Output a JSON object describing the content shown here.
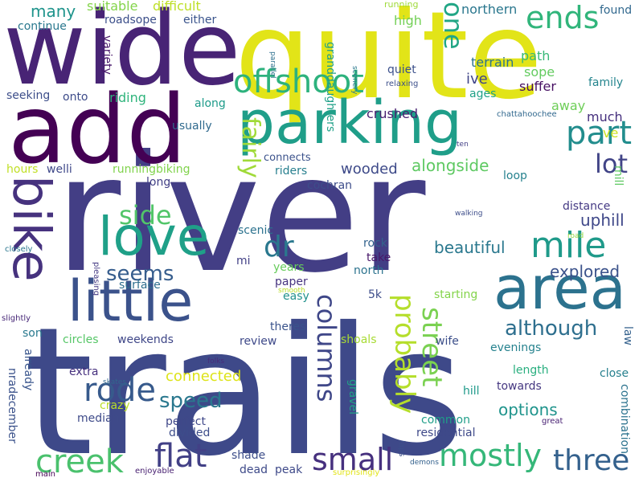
{
  "words": [
    {
      "text": "river",
      "color": "#433e85"
    },
    {
      "text": "trails",
      "color": "#3e4989"
    },
    {
      "text": "quite",
      "color": "#e2e418"
    },
    {
      "text": "wide",
      "color": "#482475"
    },
    {
      "text": "add",
      "color": "#440154"
    },
    {
      "text": "parking",
      "color": "#1f9e89"
    },
    {
      "text": "bike",
      "color": "#46327e"
    },
    {
      "text": "area",
      "color": "#2c728e"
    },
    {
      "text": "little",
      "color": "#3b528b"
    },
    {
      "text": "love",
      "color": "#1fa088"
    },
    {
      "text": "offshoot",
      "color": "#2db27d"
    },
    {
      "text": "mile",
      "color": "#1f9a8a"
    },
    {
      "text": "ends",
      "color": "#31b57b"
    },
    {
      "text": "part",
      "color": "#228d8d"
    },
    {
      "text": "one",
      "color": "#21a685"
    },
    {
      "text": "creek",
      "color": "#4ac16d"
    },
    {
      "text": "flat",
      "color": "#424086"
    },
    {
      "text": "small",
      "color": "#46307e"
    },
    {
      "text": "mostly",
      "color": "#35b779"
    },
    {
      "text": "three",
      "color": "#34618d"
    },
    {
      "text": "rode",
      "color": "#375a8c"
    },
    {
      "text": "columns",
      "color": "#3f4788"
    },
    {
      "text": "street",
      "color": "#7ad151"
    },
    {
      "text": "probably",
      "color": "#b5de2b"
    },
    {
      "text": "fairly",
      "color": "#a0da39"
    },
    {
      "text": "dr",
      "color": "#2a788e"
    },
    {
      "text": "side",
      "color": "#52c569"
    },
    {
      "text": "lot",
      "color": "#414487"
    },
    {
      "text": "seems",
      "color": "#365d8d"
    },
    {
      "text": "although",
      "color": "#2e6f8e"
    },
    {
      "text": "speed",
      "color": "#2a788e"
    },
    {
      "text": "wooded",
      "color": "#3e4a89"
    },
    {
      "text": "alongside",
      "color": "#5ec962"
    },
    {
      "text": "beautiful",
      "color": "#2a788e"
    },
    {
      "text": "explored",
      "color": "#3b528b"
    },
    {
      "text": "uphill",
      "color": "#3f4889"
    },
    {
      "text": "options",
      "color": "#1f948c"
    },
    {
      "text": "connected",
      "color": "#dde318"
    },
    {
      "text": "many",
      "color": "#1f948c"
    },
    {
      "text": "suitable",
      "color": "#84d44b"
    },
    {
      "text": "difficult",
      "color": "#bddf26"
    },
    {
      "text": "running",
      "color": "#9fda3a"
    },
    {
      "text": "northern",
      "color": "#2a778e"
    },
    {
      "text": "found",
      "color": "#31688e"
    },
    {
      "text": "continue",
      "color": "#2a788e"
    },
    {
      "text": "roadsope",
      "color": "#3c4f8a"
    },
    {
      "text": "either",
      "color": "#3a548c"
    },
    {
      "text": "high",
      "color": "#73d056"
    },
    {
      "text": "terrain",
      "color": "#2c738e"
    },
    {
      "text": "path",
      "color": "#38b977"
    },
    {
      "text": "sope",
      "color": "#63cb5f"
    },
    {
      "text": "ive",
      "color": "#404588"
    },
    {
      "text": "family",
      "color": "#25858e"
    },
    {
      "text": "suffer",
      "color": "#471063"
    },
    {
      "text": "quiet",
      "color": "#3c508b"
    },
    {
      "text": "ages",
      "color": "#1fa287"
    },
    {
      "text": "away",
      "color": "#6ece58"
    },
    {
      "text": "much",
      "color": "#46307e"
    },
    {
      "text": "seeking",
      "color": "#3d4e8a"
    },
    {
      "text": "onto",
      "color": "#3e4c8a"
    },
    {
      "text": "variety",
      "color": "#48186a"
    },
    {
      "text": "riding",
      "color": "#2fb47c"
    },
    {
      "text": "along",
      "color": "#1e9b8a"
    },
    {
      "text": "granddaughters",
      "color": "#1fa088"
    },
    {
      "text": "relaxing",
      "color": "#3c4f8a"
    },
    {
      "text": "scenery",
      "color": "#2a778e"
    },
    {
      "text": "parallel",
      "color": "#2d708e"
    },
    {
      "text": "crushed",
      "color": "#481f70"
    },
    {
      "text": "chattahoochee",
      "color": "#31688e"
    },
    {
      "text": "usually",
      "color": "#306a8e"
    },
    {
      "text": "ve",
      "color": "#cae11f"
    },
    {
      "text": "hours",
      "color": "#c0df25"
    },
    {
      "text": "welli",
      "color": "#3f4889"
    },
    {
      "text": "runningbiking",
      "color": "#81d34d"
    },
    {
      "text": "connects",
      "color": "#3b528b"
    },
    {
      "text": "riders",
      "color": "#277f8e"
    },
    {
      "text": "ten",
      "color": "#423f85"
    },
    {
      "text": "mill",
      "color": "#5ec962"
    },
    {
      "text": "loop",
      "color": "#26828e"
    },
    {
      "text": "cochran",
      "color": "#3d4d8a"
    },
    {
      "text": "long",
      "color": "#424086"
    },
    {
      "text": "distance",
      "color": "#443983"
    },
    {
      "text": "walking",
      "color": "#3d4d8a"
    },
    {
      "text": "scenic",
      "color": "#2c728e"
    },
    {
      "text": "rock",
      "color": "#33638d"
    },
    {
      "text": "take",
      "color": "#481769"
    },
    {
      "text": "north",
      "color": "#2c738e"
    },
    {
      "text": "road",
      "color": "#93d741"
    },
    {
      "text": "closely",
      "color": "#2a768e"
    },
    {
      "text": "mi",
      "color": "#424086"
    },
    {
      "text": "years",
      "color": "#67cc5c"
    },
    {
      "text": "pleasing",
      "color": "#443a83"
    },
    {
      "text": "surface",
      "color": "#2e6e8e"
    },
    {
      "text": "paper",
      "color": "#46337f"
    },
    {
      "text": "easy",
      "color": "#21918c"
    },
    {
      "text": "smooth",
      "color": "#bade28"
    },
    {
      "text": "slightly",
      "color": "#482878"
    },
    {
      "text": "5k",
      "color": "#3d4d8a"
    },
    {
      "text": "starting",
      "color": "#84d44b"
    },
    {
      "text": "son",
      "color": "#29798e"
    },
    {
      "text": "theres",
      "color": "#3a538b"
    },
    {
      "text": "review",
      "color": "#3e4989"
    },
    {
      "text": "circles",
      "color": "#56c667"
    },
    {
      "text": "weekends",
      "color": "#3f4788"
    },
    {
      "text": "shoals",
      "color": "#a8db34"
    },
    {
      "text": "wife",
      "color": "#3c4f8a"
    },
    {
      "text": "evenings",
      "color": "#26828e"
    },
    {
      "text": "law",
      "color": "#34618d"
    },
    {
      "text": "length",
      "color": "#29af7f"
    },
    {
      "text": "close",
      "color": "#27808e"
    },
    {
      "text": "towards",
      "color": "#453781"
    },
    {
      "text": "combination",
      "color": "#2c738e"
    },
    {
      "text": "hill",
      "color": "#1f9a8a"
    },
    {
      "text": "folks",
      "color": "#472c7a"
    },
    {
      "text": "skates",
      "color": "#31688e"
    },
    {
      "text": "already",
      "color": "#39558c"
    },
    {
      "text": "nradecember",
      "color": "#3b528b"
    },
    {
      "text": "extra",
      "color": "#46307e"
    },
    {
      "text": "crazy",
      "color": "#bade28"
    },
    {
      "text": "median",
      "color": "#3e4a89"
    },
    {
      "text": "perfect",
      "color": "#3f4889"
    },
    {
      "text": "divided",
      "color": "#3d4d8a"
    },
    {
      "text": "gravel",
      "color": "#20a386"
    },
    {
      "text": "common",
      "color": "#1f9e89"
    },
    {
      "text": "great",
      "color": "#482173"
    },
    {
      "text": "residential",
      "color": "#3e4989"
    },
    {
      "text": "shade",
      "color": "#3d4e8a"
    },
    {
      "text": "dead",
      "color": "#3e4a89"
    },
    {
      "text": "peak",
      "color": "#3e4989"
    },
    {
      "text": "laps",
      "color": "#3c4f8a"
    },
    {
      "text": "demons",
      "color": "#34618d"
    },
    {
      "text": "surprisingly",
      "color": "#e2e418"
    },
    {
      "text": "enjoyable",
      "color": "#482071"
    },
    {
      "text": "main",
      "color": "#440154"
    }
  ]
}
